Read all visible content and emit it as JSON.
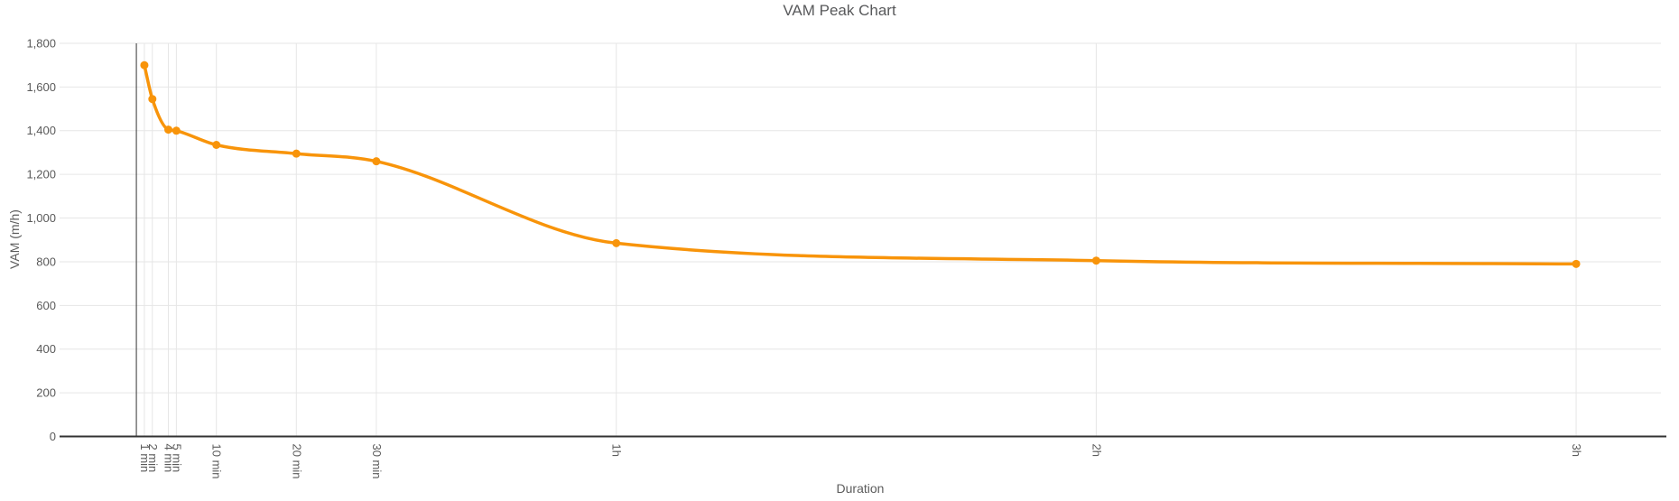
{
  "chart": {
    "title": "VAM Peak Chart",
    "x_axis_title": "Duration",
    "y_axis_title": "VAM (m/h)",
    "colors": {
      "series": "#f8940a",
      "grid": "#e6e6e6",
      "axis_line": "#333333",
      "tick_text": "#5a5a5a",
      "title_text": "#58595b"
    }
  },
  "chart_data": {
    "type": "line",
    "title": "VAM Peak Chart",
    "xlabel": "Duration",
    "ylabel": "VAM (m/h)",
    "x_unit": "minutes",
    "x": [
      1,
      2,
      4,
      5,
      10,
      20,
      30,
      60,
      120,
      180
    ],
    "x_tick_labels": [
      "1 min",
      "2 min",
      "4 min",
      "5 min",
      "10 min",
      "20 min",
      "30 min",
      "1h",
      "2h",
      "3h"
    ],
    "values": [
      1700,
      1545,
      1405,
      1400,
      1335,
      1295,
      1260,
      885,
      805,
      790
    ],
    "series_name": "VAM",
    "y_ticks": [
      {
        "v": 0,
        "label": "0"
      },
      {
        "v": 200,
        "label": "200"
      },
      {
        "v": 400,
        "label": "400"
      },
      {
        "v": 600,
        "label": "600"
      },
      {
        "v": 800,
        "label": "800"
      },
      {
        "v": 1000,
        "label": "1,000"
      },
      {
        "v": 1200,
        "label": "1,200"
      },
      {
        "v": 1400,
        "label": "1,400"
      },
      {
        "v": 1600,
        "label": "1,600"
      },
      {
        "v": 1800,
        "label": "1,800"
      }
    ],
    "ylim": [
      0,
      1800
    ],
    "xlim_minutes": [
      -9.6,
      190.6
    ],
    "baseline_at_minute": 0,
    "grid": true,
    "legend": "none",
    "curve": "smooth",
    "point_markers": true
  }
}
